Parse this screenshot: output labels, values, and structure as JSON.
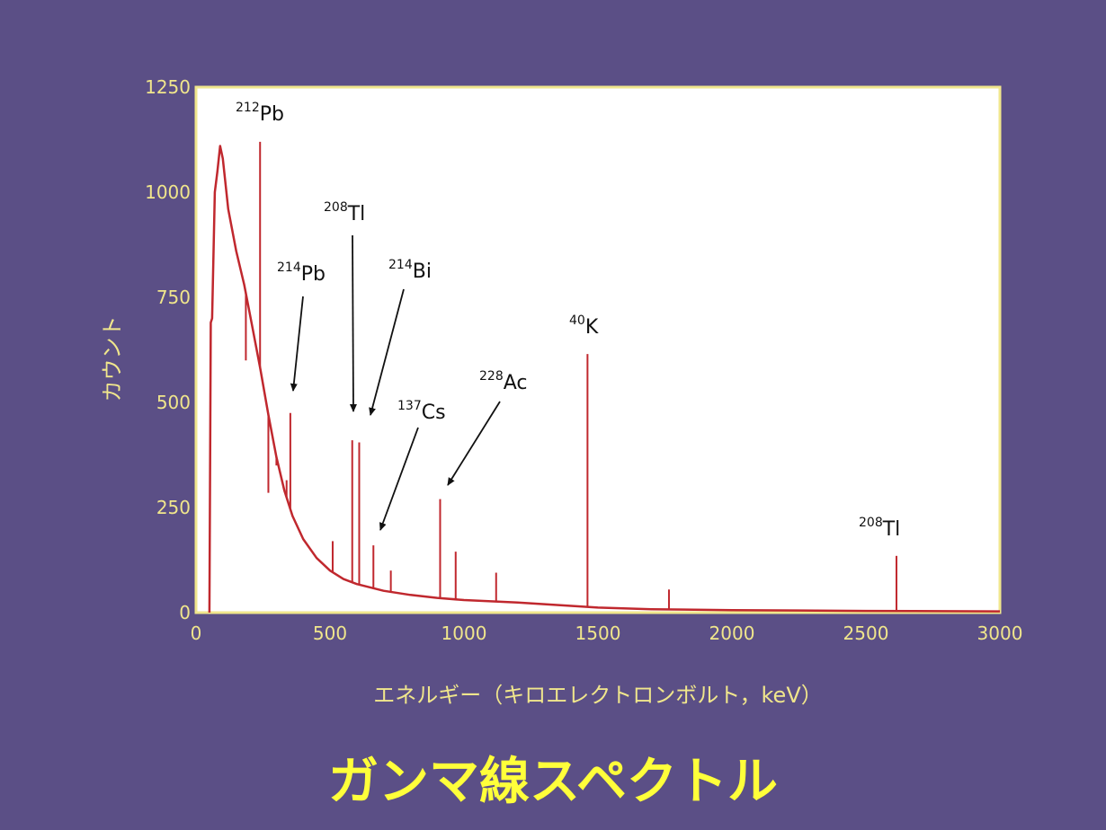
{
  "slide_title": "ガンマ線スペクトル",
  "colors": {
    "background": "#5b4f86",
    "plot_area": "#ffffff",
    "frame": "#f0e68c",
    "text": "#f0e68c",
    "series": "#c0282e",
    "title": "#ffff3a"
  },
  "chart_data": {
    "type": "line",
    "xlabel": "エネルギー（キロエレクトロンボルト，keV）",
    "ylabel": "カウント",
    "xlim": [
      0,
      3000
    ],
    "ylim": [
      0,
      1250
    ],
    "xticks": [
      0,
      500,
      1000,
      1500,
      2000,
      2500,
      3000
    ],
    "yticks": [
      0,
      250,
      500,
      750,
      1000,
      1250
    ],
    "xtick_labels": [
      "0",
      "500",
      "1000",
      "1500",
      "2000",
      "2500",
      "3000"
    ],
    "ytick_labels": [
      "0",
      "250",
      "500",
      "750",
      "1000",
      "1250"
    ],
    "grid": false,
    "continuum": [
      [
        50,
        0
      ],
      [
        55,
        690
      ],
      [
        60,
        700
      ],
      [
        70,
        1000
      ],
      [
        80,
        1050
      ],
      [
        90,
        1110
      ],
      [
        100,
        1080
      ],
      [
        110,
        1020
      ],
      [
        120,
        960
      ],
      [
        150,
        860
      ],
      [
        180,
        780
      ],
      [
        210,
        680
      ],
      [
        240,
        580
      ],
      [
        270,
        470
      ],
      [
        300,
        370
      ],
      [
        330,
        290
      ],
      [
        360,
        230
      ],
      [
        400,
        175
      ],
      [
        450,
        130
      ],
      [
        500,
        100
      ],
      [
        550,
        80
      ],
      [
        600,
        68
      ],
      [
        700,
        52
      ],
      [
        800,
        42
      ],
      [
        900,
        35
      ],
      [
        1000,
        30
      ],
      [
        1100,
        27
      ],
      [
        1200,
        24
      ],
      [
        1300,
        20
      ],
      [
        1400,
        16
      ],
      [
        1500,
        12
      ],
      [
        1700,
        8
      ],
      [
        2000,
        6
      ],
      [
        2500,
        4
      ],
      [
        3000,
        3
      ]
    ],
    "peaks": [
      {
        "x": 186,
        "y": 600
      },
      {
        "x": 239,
        "y": 1120
      },
      {
        "x": 270,
        "y": 285
      },
      {
        "x": 300,
        "y": 350
      },
      {
        "x": 338,
        "y": 315
      },
      {
        "x": 352,
        "y": 475
      },
      {
        "x": 510,
        "y": 170
      },
      {
        "x": 583,
        "y": 410
      },
      {
        "x": 609,
        "y": 405
      },
      {
        "x": 662,
        "y": 160
      },
      {
        "x": 727,
        "y": 100
      },
      {
        "x": 911,
        "y": 270
      },
      {
        "x": 969,
        "y": 145
      },
      {
        "x": 1120,
        "y": 95
      },
      {
        "x": 1461,
        "y": 615
      },
      {
        "x": 1765,
        "y": 55
      },
      {
        "x": 2614,
        "y": 135
      }
    ],
    "annotations": [
      {
        "label_mass": "212",
        "label_symbol": "Pb",
        "peak_x": 239
      },
      {
        "label_mass": "214",
        "label_symbol": "Pb",
        "peak_x": 352
      },
      {
        "label_mass": "208",
        "label_symbol": "Tl",
        "peak_x": 583
      },
      {
        "label_mass": "214",
        "label_symbol": "Bi",
        "peak_x": 609
      },
      {
        "label_mass": "137",
        "label_symbol": "Cs",
        "peak_x": 662
      },
      {
        "label_mass": "228",
        "label_symbol": "Ac",
        "peak_x": 911
      },
      {
        "label_mass": "40",
        "label_symbol": "K",
        "peak_x": 1461
      },
      {
        "label_mass": "208",
        "label_symbol": "Tl",
        "peak_x": 2614
      }
    ]
  }
}
